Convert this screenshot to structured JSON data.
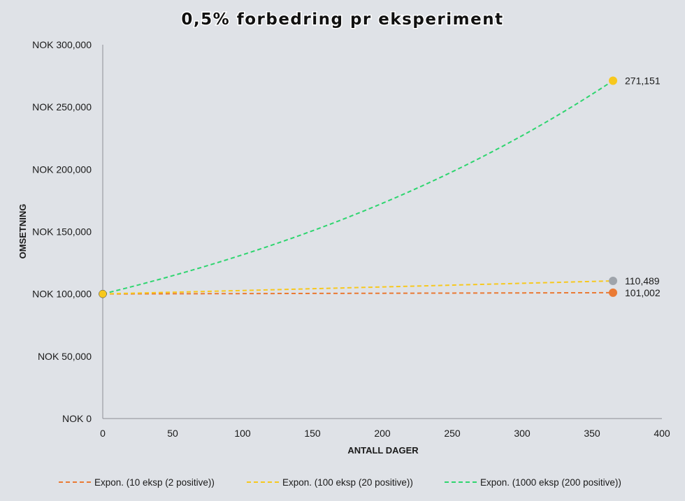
{
  "chart_data": {
    "type": "line",
    "title": "0,5% forbedring pr eksperiment",
    "xlabel": "ANTALL DAGER",
    "ylabel": "OMSETNING",
    "xlim": [
      0,
      400
    ],
    "ylim": [
      0,
      300000
    ],
    "x_ticks": [
      "0",
      "50",
      "100",
      "150",
      "200",
      "250",
      "300",
      "350",
      "400"
    ],
    "y_ticks": [
      "NOK 0",
      "NOK 50,000",
      "NOK 100,000",
      "NOK 150,000",
      "NOK 200,000",
      "NOK 250,000",
      "NOK 300,000"
    ],
    "grid": false,
    "legend_position": "bottom",
    "series": [
      {
        "name": "Expon. (10 eksp (2 positive))",
        "color": "#ea7a34",
        "marker_color": "#ea7a34",
        "points": [
          [
            0,
            100000
          ],
          [
            365,
            101002
          ]
        ],
        "end_label": "101,002"
      },
      {
        "name": "Expon. (100 eksp (20 positive))",
        "color": "#f7c81e",
        "marker_color": "#9fa4ab",
        "points": [
          [
            0,
            100000
          ],
          [
            365,
            110489
          ]
        ],
        "end_label": "110,489"
      },
      {
        "name": "Expon. (1000 eksp (200 positive))",
        "color": "#2ed56f",
        "marker_color": "#f7c81e",
        "points": [
          [
            0,
            100000
          ],
          [
            365,
            271151
          ]
        ],
        "end_label": "271,151"
      }
    ]
  }
}
